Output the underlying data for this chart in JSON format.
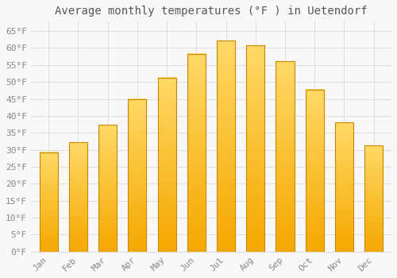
{
  "title": "Average monthly temperatures (°F ) in Uetendorf",
  "months": [
    "Jan",
    "Feb",
    "Mar",
    "Apr",
    "May",
    "Jun",
    "Jul",
    "Aug",
    "Sep",
    "Oct",
    "Nov",
    "Dec"
  ],
  "values": [
    29.3,
    32.2,
    37.4,
    45.0,
    51.3,
    58.3,
    62.2,
    60.8,
    56.1,
    47.8,
    38.1,
    31.3
  ],
  "bar_color_bottom": "#F5A800",
  "bar_color_top": "#FFD966",
  "bar_edge_color": "#CC8800",
  "background_color": "#F8F8F8",
  "grid_color": "#DDDDDD",
  "text_color": "#888888",
  "title_color": "#555555",
  "ylim": [
    0,
    68
  ],
  "yticks": [
    0,
    5,
    10,
    15,
    20,
    25,
    30,
    35,
    40,
    45,
    50,
    55,
    60,
    65
  ],
  "title_fontsize": 10,
  "tick_fontsize": 8,
  "font_family": "monospace"
}
